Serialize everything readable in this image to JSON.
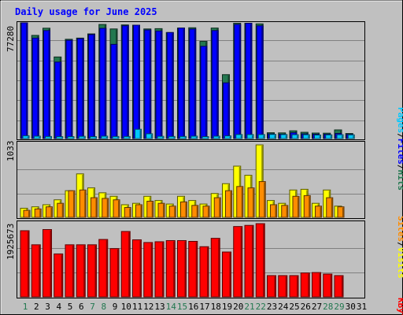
{
  "title": "Daily usage for June 2025",
  "colors": {
    "background": "#c0c0c0",
    "title": "#0000ff",
    "hits": "#237850",
    "files": "#0000ff",
    "pages": "#00c8ff",
    "visits": "#ffff00",
    "sites": "#ff8c00",
    "kbytes": "#ff0000",
    "weekend_day": "#237850",
    "gridline": "#808080"
  },
  "legend": {
    "top": {
      "pages": "Pages",
      "files": "Files",
      "hits": "Hits",
      "sep1": "/",
      "sep2": "/"
    },
    "middle": {
      "sites": "Sites",
      "visits": "Visits",
      "sep": "/"
    },
    "bottom": {
      "kbytes": "KBytes"
    }
  },
  "chart_data": [
    {
      "type": "bar",
      "panel": "hits-files-pages",
      "max_label": "77280",
      "ylim": [
        0,
        77280
      ],
      "categories": [
        "1",
        "2",
        "3",
        "4",
        "5",
        "6",
        "7",
        "8",
        "9",
        "10",
        "11",
        "12",
        "13",
        "14",
        "15",
        "16",
        "17",
        "18",
        "19",
        "20",
        "21",
        "22",
        "23",
        "24",
        "25",
        "26",
        "27",
        "28",
        "29",
        "30",
        "31"
      ],
      "series": [
        {
          "name": "Hits",
          "values": [
            77280,
            68900,
            73700,
            54500,
            66300,
            67100,
            69900,
            76200,
            73200,
            75900,
            75700,
            73200,
            73400,
            70800,
            73800,
            74000,
            64900,
            73800,
            42700,
            77000,
            77000,
            76600,
            3900,
            3800,
            5200,
            4200,
            3700,
            3600,
            5800,
            3400,
            0
          ]
        },
        {
          "name": "Files",
          "values": [
            77280,
            67100,
            72100,
            51100,
            65600,
            66700,
            69400,
            73600,
            62900,
            75300,
            75700,
            72500,
            71800,
            70800,
            73800,
            73100,
            61600,
            72100,
            37200,
            76200,
            77000,
            75300,
            3100,
            2900,
            3900,
            3100,
            2900,
            2900,
            3400,
            2800,
            0
          ]
        },
        {
          "name": "Pages",
          "values": [
            1900,
            1600,
            1400,
            1300,
            1300,
            1500,
            1300,
            1600,
            1400,
            1400,
            6200,
            3200,
            1500,
            1400,
            1400,
            1600,
            1300,
            1600,
            1800,
            2700,
            2700,
            2700,
            2800,
            2700,
            2600,
            2600,
            2400,
            2500,
            2600,
            2500,
            0
          ]
        }
      ]
    },
    {
      "type": "bar",
      "panel": "visits-sites",
      "max_label": "1033",
      "ylim": [
        0,
        1033
      ],
      "categories": [
        "1",
        "2",
        "3",
        "4",
        "5",
        "6",
        "7",
        "8",
        "9",
        "10",
        "11",
        "12",
        "13",
        "14",
        "15",
        "16",
        "17",
        "18",
        "19",
        "20",
        "21",
        "22",
        "23",
        "24",
        "25",
        "26",
        "27",
        "28",
        "29",
        "30",
        "31"
      ],
      "series": [
        {
          "name": "Visits",
          "values": [
            130,
            150,
            180,
            250,
            380,
            620,
            420,
            350,
            300,
            180,
            200,
            300,
            240,
            190,
            300,
            240,
            190,
            340,
            480,
            730,
            600,
            1033,
            240,
            200,
            390,
            400,
            200,
            390,
            160,
            0,
            0
          ]
        },
        {
          "name": "Sites",
          "values": [
            100,
            120,
            150,
            200,
            380,
            390,
            280,
            270,
            250,
            140,
            180,
            230,
            200,
            160,
            220,
            170,
            160,
            280,
            380,
            440,
            420,
            510,
            180,
            170,
            300,
            310,
            160,
            280,
            150,
            0,
            0
          ]
        }
      ]
    },
    {
      "type": "bar",
      "panel": "kbytes",
      "max_label": "1925673",
      "ylim": [
        0,
        1925673
      ],
      "categories": [
        "1",
        "2",
        "3",
        "4",
        "5",
        "6",
        "7",
        "8",
        "9",
        "10",
        "11",
        "12",
        "13",
        "14",
        "15",
        "16",
        "17",
        "18",
        "19",
        "20",
        "21",
        "22",
        "23",
        "24",
        "25",
        "26",
        "27",
        "28",
        "29",
        "30",
        "31"
      ],
      "series": [
        {
          "name": "KBytes",
          "values": [
            1740000,
            1370000,
            1770000,
            1130000,
            1370000,
            1370000,
            1370000,
            1510000,
            1270000,
            1720000,
            1500000,
            1430000,
            1450000,
            1480000,
            1480000,
            1460000,
            1320000,
            1540000,
            1180000,
            1850000,
            1880000,
            1925673,
            560000,
            560000,
            560000,
            630000,
            640000,
            600000,
            560000,
            0,
            0
          ]
        }
      ]
    }
  ],
  "weekend_days": [
    1,
    7,
    8,
    14,
    15,
    21,
    22,
    28,
    29
  ]
}
